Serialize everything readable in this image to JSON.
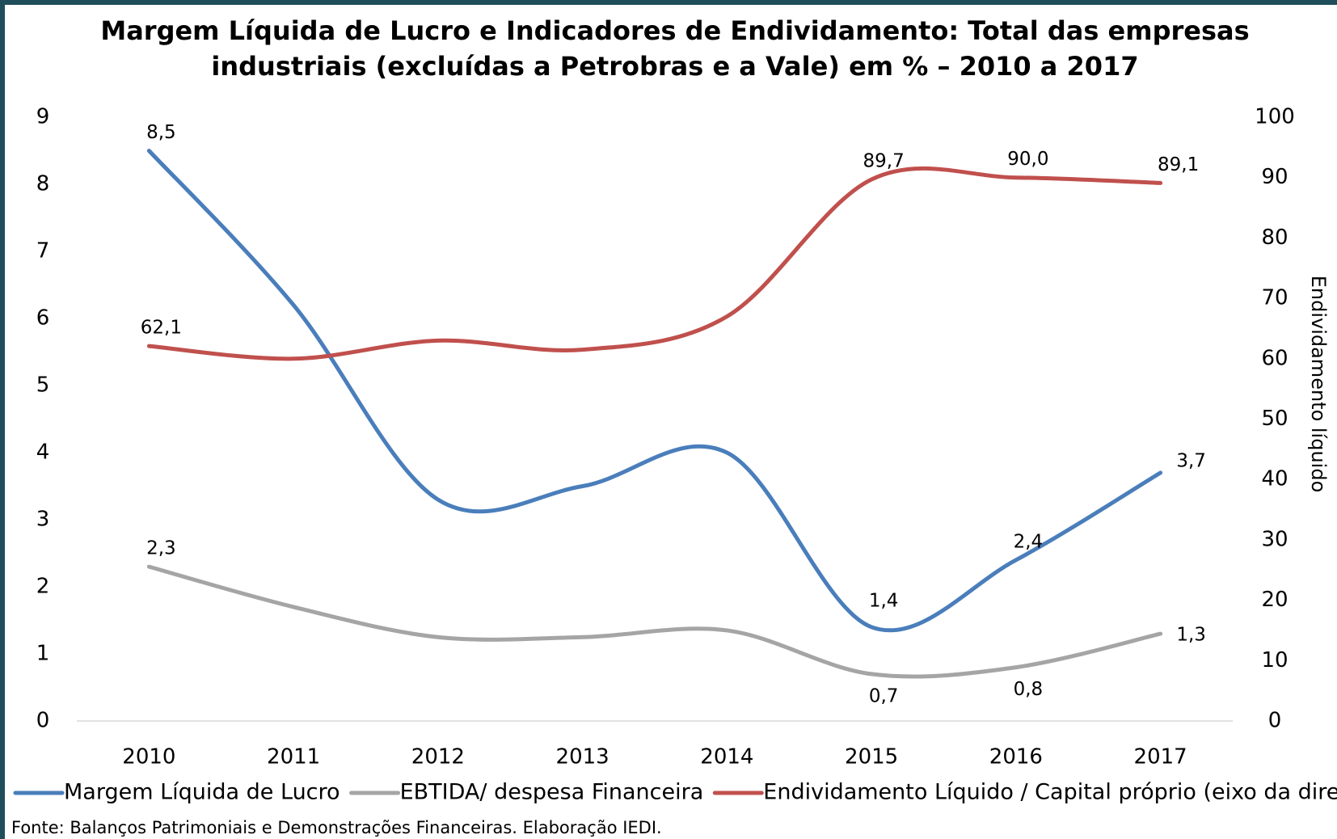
{
  "chart_data": {
    "type": "line",
    "title": [
      "Margem Líquida de Lucro e Indicadores de Endividamento: Total das empresas",
      "industriais (excluídas a Petrobras e a Vale) em % – 2010 a 2017"
    ],
    "categories": [
      "2010",
      "2011",
      "2012",
      "2013",
      "2014",
      "2015",
      "2016",
      "2017"
    ],
    "series": [
      {
        "name": "Margem Líquida de Lucro",
        "color": "#4a7ebb",
        "values": [
          8.5,
          6.2,
          3.3,
          3.5,
          4.0,
          1.4,
          2.4,
          3.7
        ],
        "value_labels": [
          "8,5",
          null,
          null,
          null,
          null,
          "1,4",
          "2,4",
          "3,7"
        ]
      },
      {
        "name": "EBTIDA/ despesa Financeira",
        "color": "#a5a5a5",
        "values": [
          2.3,
          1.7,
          1.25,
          1.25,
          1.35,
          0.7,
          0.8,
          1.3
        ],
        "value_labels": [
          "2,3",
          null,
          null,
          null,
          null,
          "0,7",
          "0,8",
          "1,3"
        ]
      },
      {
        "name": "Endividamento Líquido / Capital próprio (eixo da direita)",
        "color": "#c0504d",
        "axis": "y2",
        "values": [
          62.1,
          60,
          63,
          61.5,
          67,
          89.7,
          90.0,
          89.1
        ],
        "value_labels": [
          "62,1",
          null,
          null,
          null,
          null,
          "89,7",
          "90,0",
          "89,1"
        ]
      }
    ],
    "ylim": [
      0,
      9
    ],
    "yticks": [
      0,
      1,
      2,
      3,
      4,
      5,
      6,
      7,
      8,
      9
    ],
    "y2lim": [
      0,
      100
    ],
    "y2ticks": [
      0,
      10,
      20,
      30,
      40,
      50,
      60,
      70,
      80,
      90,
      100
    ],
    "y2label": "Endividamento líquido",
    "source": "Fonte: Balanços Patrimoniais e Demonstrações Financeiras. Elaboração IEDI.",
    "grid": false
  }
}
